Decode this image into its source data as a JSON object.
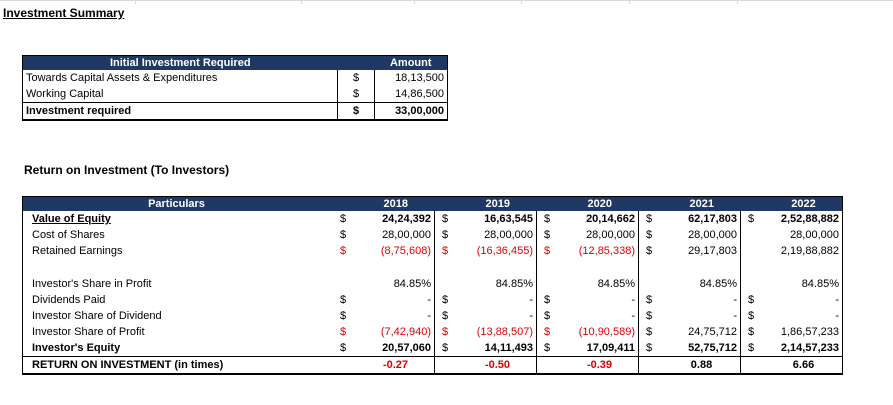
{
  "page_title": "Investment Summary",
  "investment": {
    "header": {
      "label": "Initial Investment Required",
      "amount": "Amount"
    },
    "rows": [
      {
        "label": "Towards Capital Assets & Expenditures",
        "cur": "$",
        "value": "18,13,500"
      },
      {
        "label": "Working Capital",
        "cur": "$",
        "value": "14,86,500"
      }
    ],
    "total": {
      "label": "Investment required",
      "cur": "$",
      "value": "33,00,000"
    }
  },
  "roi": {
    "title": "Return on Investment (To Investors)",
    "header": {
      "label": "Particulars",
      "years": [
        "2018",
        "2019",
        "2020",
        "2021",
        "2022"
      ]
    },
    "rows": [
      {
        "label": "Value of Equity",
        "vals": [
          "24,24,392",
          "16,63,545",
          "20,14,662",
          "62,17,803",
          "2,52,88,882"
        ]
      },
      {
        "label": "Cost of Shares",
        "vals": [
          "28,00,000",
          "28,00,000",
          "28,00,000",
          "28,00,000",
          "28,00,000"
        ]
      },
      {
        "label": "Retained Earnings",
        "vals": [
          "(8,75,608)",
          "(16,36,455)",
          "(12,85,338)",
          "29,17,803",
          "2,19,88,882"
        ]
      },
      {
        "label": "Investor's Share in Profit",
        "vals": [
          "84.85%",
          "84.85%",
          "84.85%",
          "84.85%",
          "84.85%"
        ]
      },
      {
        "label": "Dividends Paid",
        "vals": [
          "-",
          "-",
          "-",
          "-",
          "-"
        ]
      },
      {
        "label": "Investor Share of Dividend",
        "vals": [
          "-",
          "-",
          "-",
          "-",
          "-"
        ]
      },
      {
        "label": "Investor Share of Profit",
        "vals": [
          "(7,42,940)",
          "(13,88,507)",
          "(10,90,589)",
          "24,75,712",
          "1,86,57,233"
        ]
      },
      {
        "label": "Investor's Equity",
        "vals": [
          "20,57,060",
          "14,11,493",
          "17,09,411",
          "52,75,712",
          "2,14,57,233"
        ]
      },
      {
        "label": "RETURN ON INVESTMENT (in times)",
        "vals": [
          "-0.27",
          "-0.50",
          "-0.39",
          "0.88",
          "6.66"
        ]
      }
    ],
    "currency": "$",
    "colors": {
      "header_bg": "#1f3864",
      "negative": "#e00000"
    }
  }
}
